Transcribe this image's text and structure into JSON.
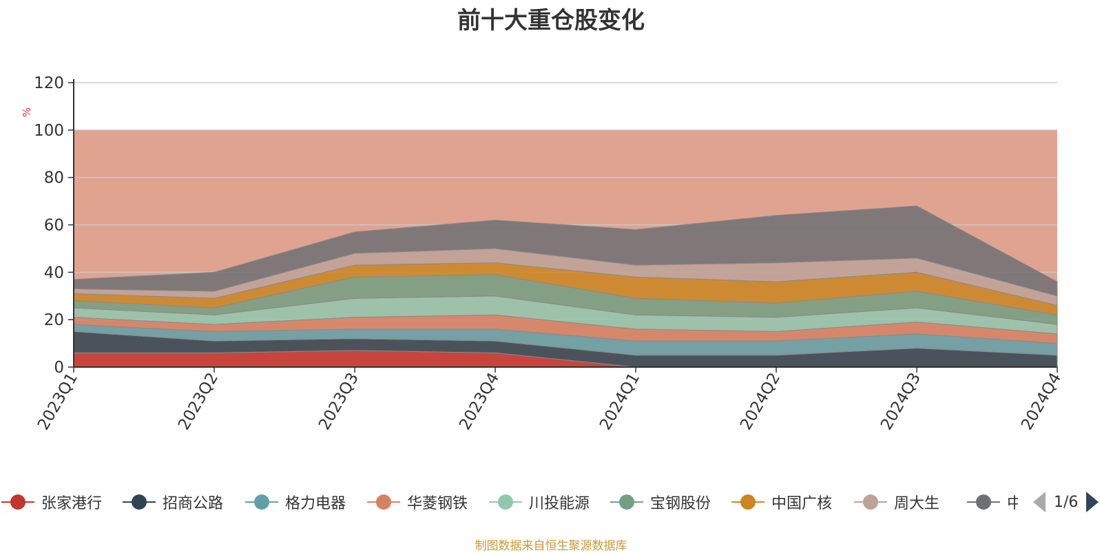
{
  "chart_data": {
    "type": "area",
    "title": "前十大重仓股变化",
    "ylabel": "%",
    "ylim": [
      0,
      120
    ],
    "yticks": [
      0,
      20,
      40,
      60,
      80,
      100,
      120
    ],
    "grid": true,
    "legend_position": "bottom",
    "x": [
      "2023Q1",
      "2023Q2",
      "2023Q3",
      "2023Q4",
      "2024Q1",
      "2024Q2",
      "2024Q3",
      "2024Q4"
    ],
    "series": [
      {
        "name": "张家港行",
        "color": "#c23531",
        "values": [
          6,
          6,
          7,
          6,
          0,
          0,
          0,
          0
        ]
      },
      {
        "name": "招商公路",
        "color": "#2f4554",
        "values": [
          9,
          5,
          5,
          5,
          5,
          5,
          8,
          5
        ]
      },
      {
        "name": "格力电器",
        "color": "#61a0a8",
        "values": [
          3,
          4,
          4,
          5,
          6,
          6,
          6,
          5
        ]
      },
      {
        "name": "华菱钢铁",
        "color": "#d48265",
        "values": [
          3,
          3,
          5,
          6,
          5,
          4,
          5,
          4
        ]
      },
      {
        "name": "川投能源",
        "color": "#91c7ae",
        "values": [
          4,
          4,
          8,
          8,
          6,
          6,
          6,
          4
        ]
      },
      {
        "name": "宝钢股份",
        "color": "#749f83",
        "values": [
          3,
          3,
          9,
          9,
          7,
          6,
          7,
          4
        ]
      },
      {
        "name": "中国广核",
        "color": "#ca8622",
        "values": [
          3,
          4,
          5,
          5,
          9,
          9,
          8,
          4
        ]
      },
      {
        "name": "周大生",
        "color": "#bda29a",
        "values": [
          2,
          3,
          5,
          6,
          5,
          8,
          6,
          4
        ]
      },
      {
        "name": "中国神华",
        "color": "#6e7074",
        "values": [
          4,
          8,
          9,
          12,
          15,
          20,
          22,
          6
        ]
      }
    ],
    "remainder_color": "#e0a390"
  },
  "legend": {
    "items": [
      "张家港行",
      "招商公路",
      "格力电器",
      "华菱钢铁",
      "川投能源",
      "宝钢股份",
      "中国广核",
      "周大生",
      "中国神华"
    ],
    "colors": [
      "#c23531",
      "#2f4554",
      "#61a0a8",
      "#d48265",
      "#91c7ae",
      "#749f83",
      "#ca8622",
      "#bda29a",
      "#6e7074"
    ],
    "pager": "1/6"
  },
  "footer": "制图数据来自恒生聚源数据库"
}
